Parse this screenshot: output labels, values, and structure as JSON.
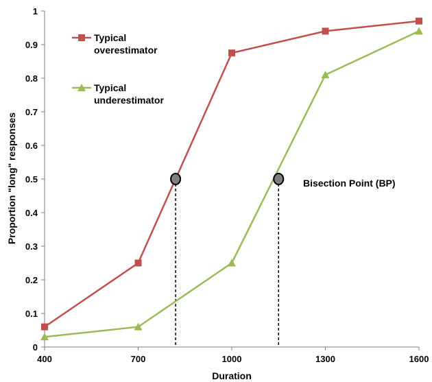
{
  "chart_data": {
    "type": "line",
    "xlabel": "Duration",
    "ylabel": "Proportion \"long\" responses",
    "x_categories": [
      "400",
      "700",
      "1000",
      "1300",
      "1600"
    ],
    "y_ticks": [
      "0",
      "0.1",
      "0.2",
      "0.3",
      "0.4",
      "0.5",
      "0.6",
      "0.7",
      "0.8",
      "0.9",
      "1"
    ],
    "ylim": [
      0,
      1
    ],
    "grid": false,
    "legend_position": "top-left",
    "series": [
      {
        "name_lines": [
          "Typical",
          "overestimator"
        ],
        "x": [
          400,
          700,
          1000,
          1300,
          1600
        ],
        "values": [
          0.06,
          0.25,
          0.875,
          0.94,
          0.97
        ],
        "color": "#c0504d",
        "marker": "square"
      },
      {
        "name_lines": [
          "Typical",
          "underestimator"
        ],
        "x": [
          400,
          700,
          1000,
          1300,
          1600
        ],
        "values": [
          0.03,
          0.06,
          0.25,
          0.81,
          0.94
        ],
        "color": "#9bbb59",
        "marker": "triangle"
      }
    ],
    "bisection_points": [
      {
        "series": 0,
        "x": 820,
        "y": 0.5
      },
      {
        "series": 1,
        "x": 1150,
        "y": 0.5
      }
    ],
    "annotation": "Bisection Point (BP)"
  }
}
